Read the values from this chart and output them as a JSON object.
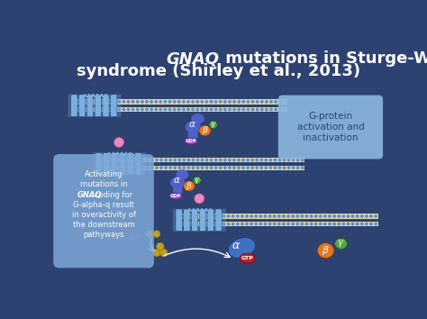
{
  "bg_color": "#2d4270",
  "title_line1_italic": "GNAQ",
  "title_line1_rest": " mutations in Sturge-Weber",
  "title_line2": "syndrome (Shirley et al., 2013)",
  "title_color": "white",
  "title_fontsize": 13,
  "box1_text": "G-protein\nactivation and\ninactivation",
  "box1_color": "#8ab8e0",
  "box1_textcolor": "#2d4270",
  "box2_line1": "Activating",
  "box2_line2": "mutations in",
  "box2_line3_italic": "GNAQ",
  "box2_line3_rest": " coding for",
  "box2_line4": "G-alpha-q result",
  "box2_line5": "in overactivity of",
  "box2_line6": "the downstream",
  "box2_line7": "pathyways",
  "box2_color": "#7da8d8",
  "box2_textcolor": "white",
  "membrane_color": "#6090c8",
  "membrane_dot_color": "#e8d8a0",
  "receptor_helix_color": "#7ab0e0",
  "alpha_color": "#5060c8",
  "beta_color": "#e07820",
  "gamma_color": "#50a840",
  "gdp_color": "#9050b0",
  "pink_ball_color": "#e888c0",
  "red_alpha_color": "#8a1010",
  "blue_alpha_dissoc_color": "#4070c0",
  "gtp_red_color": "#c02020",
  "arrow_color": "white",
  "gdp_ball_color": "#c0a020",
  "gtp_ball_color": "#c0a020"
}
